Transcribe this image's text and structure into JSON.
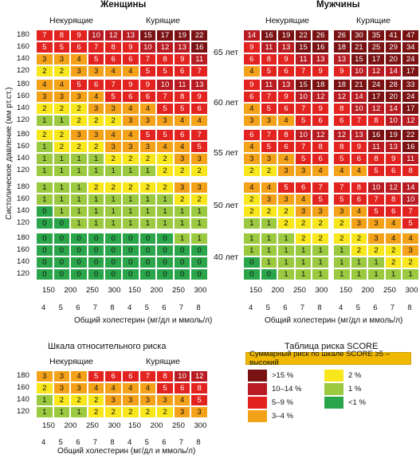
{
  "titles": {
    "women": "Женщины",
    "men": "Мужчины",
    "relative": "Шкала относительного риска",
    "score_table": "Таблица риска SCORE"
  },
  "labels": {
    "nonsmokers": "Некурящие",
    "smokers": "Курящие",
    "yaxis": "Систолическое давление (мм рт.ст.)",
    "xaxis": "Общий холестерин (мг/дл и ммоль/л)"
  },
  "ages": [
    "65 лет",
    "60 лет",
    "55 лет",
    "50 лет",
    "40 лет"
  ],
  "sbp_ticks": [
    "180",
    "160",
    "140",
    "120"
  ],
  "chol_mmol_ticks": [
    "4",
    "5",
    "6",
    "7",
    "8"
  ],
  "chol_mg_ticks": [
    "150",
    "200",
    "250",
    "300"
  ],
  "legend": {
    "banner": "Суммарный риск по шкале SCORE ≥5 – высокий",
    "items": [
      {
        "label": ">15 %",
        "color": "#7a1214"
      },
      {
        "label": "10–14 %",
        "color": "#b81c22"
      },
      {
        "label": "5–9 %",
        "color": "#e3231f"
      },
      {
        "label": "3–4 %",
        "color": "#f5a21b"
      },
      {
        "label": "2 %",
        "color": "#f7e71c"
      },
      {
        "label": "1 %",
        "color": "#9bc93f"
      },
      {
        "label": "<1 %",
        "color": "#2aa54a"
      }
    ]
  },
  "chart_data": {
    "type": "heatmap",
    "rows": [
      "180",
      "160",
      "140",
      "120"
    ],
    "columns": [
      "4",
      "5",
      "6",
      "7",
      "8"
    ],
    "score": {
      "women_nonsmokers": [
        [
          [
            7,
            8,
            9,
            10,
            12
          ],
          [
            5,
            5,
            6,
            7,
            8
          ],
          [
            3,
            3,
            4,
            5,
            6
          ],
          [
            2,
            2,
            3,
            3,
            4
          ]
        ],
        [
          [
            4,
            4,
            5,
            6,
            7
          ],
          [
            3,
            3,
            3,
            4,
            5
          ],
          [
            2,
            2,
            2,
            3,
            3
          ],
          [
            1,
            1,
            2,
            2,
            2
          ]
        ],
        [
          [
            2,
            2,
            3,
            3,
            4
          ],
          [
            1,
            2,
            2,
            2,
            3
          ],
          [
            1,
            1,
            1,
            1,
            2
          ],
          [
            1,
            1,
            1,
            1,
            1
          ]
        ],
        [
          [
            1,
            1,
            1,
            2,
            2
          ],
          [
            1,
            1,
            1,
            1,
            1
          ],
          [
            0,
            1,
            1,
            1,
            1
          ],
          [
            0,
            0,
            1,
            1,
            1
          ]
        ],
        [
          [
            0,
            0,
            0,
            0,
            0
          ],
          [
            0,
            0,
            0,
            0,
            0
          ],
          [
            0,
            0,
            0,
            0,
            0
          ],
          [
            0,
            0,
            0,
            0,
            0
          ]
        ]
      ],
      "women_smokers": [
        [
          [
            13,
            15,
            17,
            19,
            22
          ],
          [
            9,
            10,
            12,
            13,
            16
          ],
          [
            6,
            7,
            8,
            9,
            11
          ],
          [
            4,
            5,
            5,
            6,
            7
          ]
        ],
        [
          [
            9,
            9,
            10,
            11,
            13
          ],
          [
            6,
            6,
            7,
            8,
            9
          ],
          [
            4,
            4,
            5,
            5,
            6
          ],
          [
            3,
            3,
            3,
            4,
            4
          ]
        ],
        [
          [
            4,
            5,
            5,
            6,
            7
          ],
          [
            3,
            3,
            4,
            4,
            5
          ],
          [
            2,
            2,
            2,
            3,
            3
          ],
          [
            1,
            1,
            2,
            2,
            2
          ]
        ],
        [
          [
            2,
            2,
            2,
            3,
            3
          ],
          [
            1,
            1,
            1,
            2,
            2
          ],
          [
            1,
            1,
            1,
            1,
            1
          ],
          [
            1,
            1,
            1,
            1,
            1
          ]
        ],
        [
          [
            0,
            0,
            0,
            1,
            1
          ],
          [
            0,
            0,
            0,
            0,
            0
          ],
          [
            0,
            0,
            0,
            0,
            0
          ],
          [
            0,
            0,
            0,
            0,
            0
          ]
        ]
      ],
      "men_nonsmokers": [
        [
          [
            14,
            16,
            19,
            22,
            26
          ],
          [
            9,
            11,
            13,
            15,
            16
          ],
          [
            6,
            8,
            9,
            11,
            13
          ],
          [
            4,
            5,
            6,
            7,
            9
          ]
        ],
        [
          [
            9,
            11,
            13,
            15,
            18
          ],
          [
            6,
            7,
            9,
            10,
            12
          ],
          [
            4,
            5,
            6,
            7,
            9
          ],
          [
            3,
            3,
            4,
            5,
            6
          ]
        ],
        [
          [
            6,
            7,
            8,
            10,
            12
          ],
          [
            4,
            5,
            6,
            7,
            8
          ],
          [
            3,
            3,
            4,
            5,
            6
          ],
          [
            2,
            2,
            3,
            3,
            4
          ]
        ],
        [
          [
            4,
            4,
            5,
            6,
            7
          ],
          [
            2,
            3,
            3,
            4,
            5
          ],
          [
            2,
            2,
            2,
            3,
            3
          ],
          [
            1,
            1,
            2,
            2,
            2
          ]
        ],
        [
          [
            1,
            1,
            1,
            2,
            2
          ],
          [
            1,
            1,
            1,
            1,
            1
          ],
          [
            0,
            1,
            1,
            1,
            1
          ],
          [
            0,
            0,
            1,
            1,
            1
          ]
        ]
      ],
      "men_smokers": [
        [
          [
            26,
            30,
            35,
            41,
            47
          ],
          [
            18,
            21,
            25,
            29,
            34
          ],
          [
            13,
            15,
            17,
            20,
            24
          ],
          [
            9,
            10,
            12,
            14,
            17
          ]
        ],
        [
          [
            18,
            21,
            24,
            28,
            33
          ],
          [
            12,
            14,
            17,
            20,
            24
          ],
          [
            8,
            10,
            12,
            14,
            17
          ],
          [
            6,
            7,
            8,
            10,
            12
          ]
        ],
        [
          [
            12,
            13,
            16,
            19,
            22
          ],
          [
            8,
            9,
            11,
            13,
            16
          ],
          [
            5,
            6,
            8,
            9,
            11
          ],
          [
            4,
            4,
            5,
            6,
            8
          ]
        ],
        [
          [
            7,
            8,
            10,
            12,
            14
          ],
          [
            5,
            6,
            7,
            8,
            10
          ],
          [
            3,
            4,
            5,
            6,
            7
          ],
          [
            2,
            3,
            3,
            4,
            5
          ]
        ],
        [
          [
            2,
            2,
            3,
            4,
            4
          ],
          [
            1,
            2,
            2,
            2,
            3
          ],
          [
            1,
            1,
            1,
            2,
            2
          ],
          [
            1,
            1,
            1,
            1,
            1
          ]
        ]
      ]
    },
    "relative": {
      "nonsmokers": [
        [
          3,
          3,
          4,
          5,
          6
        ],
        [
          2,
          3,
          3,
          4,
          4
        ],
        [
          1,
          2,
          2,
          2,
          3
        ],
        [
          1,
          1,
          1,
          2,
          2
        ]
      ],
      "smokers": [
        [
          6,
          7,
          8,
          10,
          12
        ],
        [
          4,
          4,
          5,
          6,
          8
        ],
        [
          3,
          3,
          3,
          4,
          5
        ],
        [
          2,
          2,
          2,
          3,
          3
        ]
      ]
    }
  }
}
